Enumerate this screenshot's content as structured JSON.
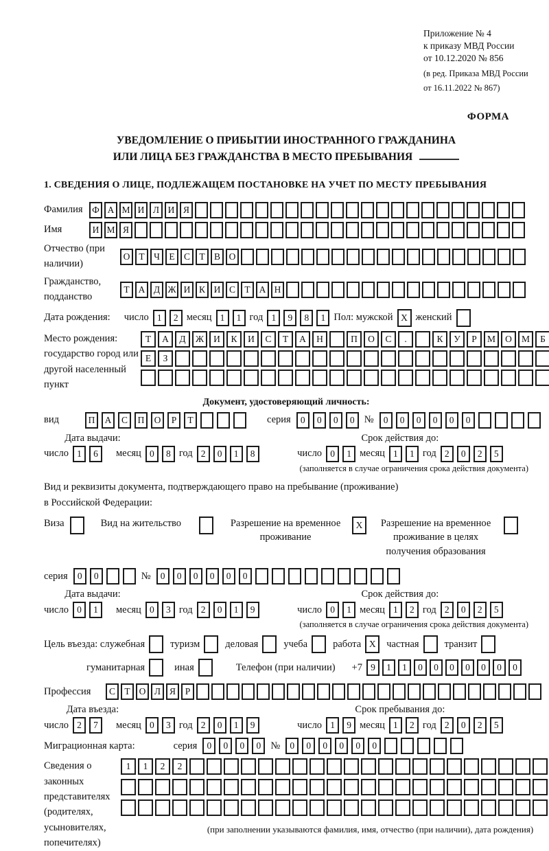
{
  "header": {
    "line1": "Приложение № 4",
    "line2": "к приказу МВД России",
    "line3": "от 10.12.2020 № 856",
    "sub1": "(в ред. Приказа МВД России",
    "sub2": "от 16.11.2022 № 867)",
    "forma": "ФОРМА"
  },
  "title": {
    "line1": "УВЕДОМЛЕНИЕ О ПРИБЫТИИ ИНОСТРАННОГО ГРАЖДАНИНА",
    "line2": "ИЛИ ЛИЦА БЕЗ ГРАЖДАНСТВА В МЕСТО ПРЕБЫВАНИЯ"
  },
  "section1": {
    "heading": "1. СВЕДЕНИЯ О ЛИЦЕ, ПОДЛЕЖАЩЕМ ПОСТАНОВКЕ НА УЧЕТ ПО МЕСТУ ПРЕБЫВАНИЯ"
  },
  "common": {
    "day_label": "число",
    "month_label": "месяц",
    "year_label": "год",
    "series_label": "серия",
    "number_label": "№",
    "issue_label": "Дата выдачи:",
    "validity_label": "Срок действия до:",
    "validity_note": "(заполняется в случае ограничения срока действия документа)"
  },
  "person": {
    "surname_label": "Фамилия",
    "surname": {
      "chars": "ФАМИЛИЯ",
      "count": 29
    },
    "name_label": "Имя",
    "name": {
      "chars": "ИМЯ",
      "count": 29
    },
    "patronymic_label": "Отчество (при наличии)",
    "patronymic": {
      "chars": "ОТЧЕСТВО",
      "count": 27
    },
    "citizenship_label": "Гражданство, подданство",
    "citizenship": {
      "chars": "ТАДЖИКИСТАН",
      "count": 27
    },
    "birthdate_label": "Дата рождения:",
    "birth_day": {
      "chars": "12"
    },
    "birth_month": {
      "chars": "11"
    },
    "birth_year": {
      "chars": "1981"
    },
    "gender_male_label": "Пол: мужской",
    "gender_male": {
      "chars": "X",
      "count": 1
    },
    "gender_female_label": "женский",
    "gender_female": {
      "chars": "",
      "count": 1
    },
    "birthplace_label": "Место рождения: государство город или другой населенный пункт",
    "birthplace_row1": {
      "chars": "ТАДЖИКИСТАН ПОС. КУРМОМБ",
      "count": 24
    },
    "birthplace_row2": {
      "chars": "ЕЗ",
      "count": 24
    },
    "birthplace_row3": {
      "chars": "",
      "count": 24
    }
  },
  "identity_doc": {
    "heading": "Документ, удостоверяющий личность:",
    "kind_label": "вид",
    "kind": {
      "chars": "ПАСПОРТ",
      "count": 10
    },
    "series": {
      "chars": "0000",
      "count": 4
    },
    "number": {
      "chars": "000000",
      "count": 10
    },
    "issue": {
      "day": {
        "chars": "16"
      },
      "month": {
        "chars": "08"
      },
      "year": {
        "chars": "2018"
      }
    },
    "valid": {
      "day": {
        "chars": "01"
      },
      "month": {
        "chars": "11"
      },
      "year": {
        "chars": "2025"
      }
    }
  },
  "residence_doc": {
    "intro1": "Вид и реквизиты документа, подтверждающего право на пребывание (проживание)",
    "intro2": "в Российской Федерации:",
    "opt_visa_label": "Виза",
    "opt_visa": {
      "chars": "",
      "count": 1
    },
    "opt_residence_label": "Вид на жительство",
    "opt_residence": {
      "chars": "",
      "count": 1
    },
    "opt_temp_label": "Разрешение на временное проживание",
    "opt_temp": {
      "chars": "X",
      "count": 1
    },
    "opt_edu_label": "Разрешение на временное проживание в целях получения образования",
    "opt_edu": {
      "chars": "",
      "count": 1
    },
    "series": {
      "chars": "00",
      "count": 4
    },
    "number": {
      "chars": "000000",
      "count": 15
    },
    "issue": {
      "day": {
        "chars": "01"
      },
      "month": {
        "chars": "03"
      },
      "year": {
        "chars": "2019"
      }
    },
    "valid": {
      "day": {
        "chars": "01"
      },
      "month": {
        "chars": "12"
      },
      "year": {
        "chars": "2025"
      }
    }
  },
  "visit": {
    "purpose_label": "Цель въезда: служебная",
    "opt_business_box": {
      "chars": "",
      "count": 1
    },
    "opt_tourism_label": "туризм",
    "opt_tourism_box": {
      "chars": "",
      "count": 1
    },
    "opt_delovaya_label": "деловая",
    "opt_delovaya_box": {
      "chars": "",
      "count": 1
    },
    "opt_study_label": "учеба",
    "opt_study_box": {
      "chars": "",
      "count": 1
    },
    "opt_work_label": "работа",
    "opt_work_box": {
      "chars": "X",
      "count": 1
    },
    "opt_private_label": "частная",
    "opt_private_box": {
      "chars": "",
      "count": 1
    },
    "opt_transit_label": "транзит",
    "opt_transit_box": {
      "chars": "",
      "count": 1
    },
    "opt_humanitarian_label": "гуманитарная",
    "opt_humanitarian_box": {
      "chars": "",
      "count": 1
    },
    "opt_other_label": "иная",
    "opt_other_box": {
      "chars": "",
      "count": 1
    },
    "phone_label": "Телефон (при наличии)",
    "phone_prefix": "+7",
    "phone": {
      "chars": "9110000000",
      "count": 10
    },
    "profession_label": "Профессия",
    "profession": {
      "chars": "СТОЛЯР",
      "count": 29
    },
    "entry_label": "Дата въезда:",
    "stay_label": "Срок пребывания до:",
    "entry": {
      "day": {
        "chars": "27"
      },
      "month": {
        "chars": "03"
      },
      "year": {
        "chars": "2019"
      }
    },
    "stay": {
      "day": {
        "chars": "19"
      },
      "month": {
        "chars": "12"
      },
      "year": {
        "chars": "2025"
      }
    }
  },
  "migration_card": {
    "label": "Миграционная карта:",
    "series": {
      "chars": "0000",
      "count": 4
    },
    "number": {
      "chars": "000000",
      "count": 11
    }
  },
  "legal_reps": {
    "label": "Сведения о законных представителях (родителях, усыновителях, попечителях)",
    "row1": {
      "chars": "1122",
      "count": 26
    },
    "row2": {
      "chars": "",
      "count": 26
    },
    "row3": {
      "chars": "",
      "count": 26
    },
    "note": "(при заполнении указываются фамилия, имя, отчество (при наличии), дата рождения)"
  }
}
